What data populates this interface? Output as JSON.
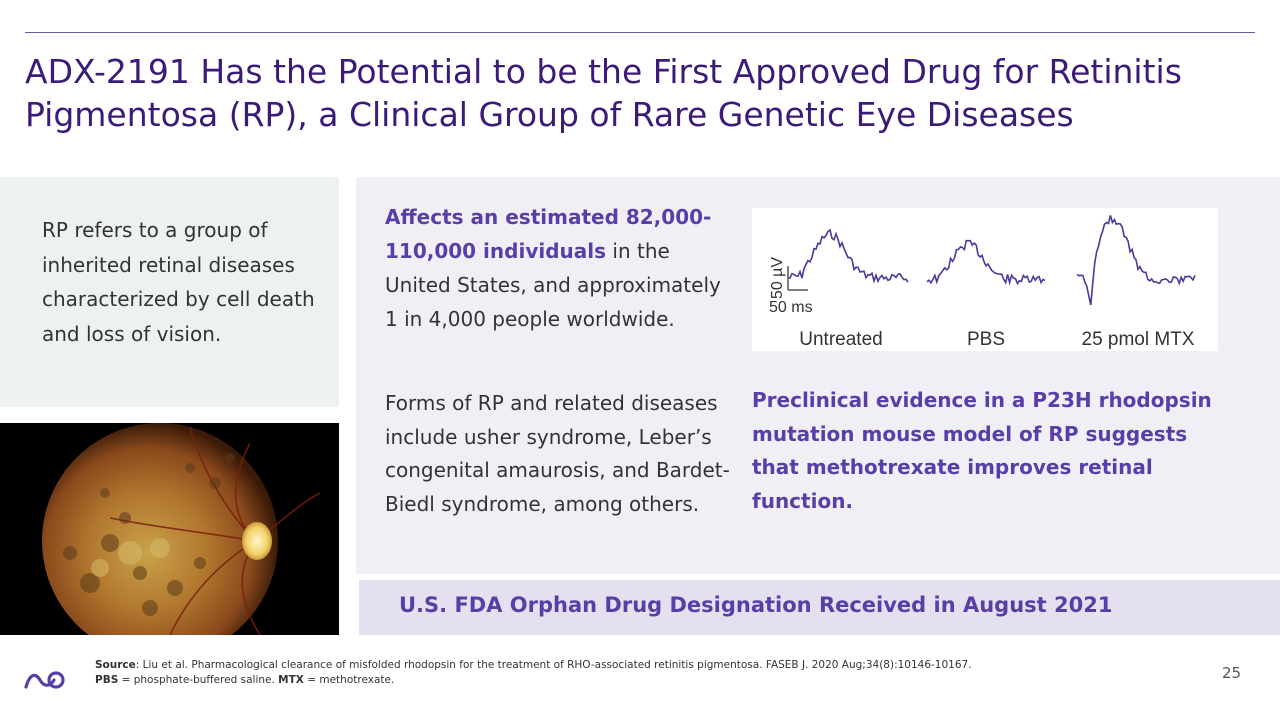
{
  "title": "ADX-2191 Has the Potential to be the First Approved Drug for Retinitis Pigmentosa (RP), a Clinical Group of Rare Genetic Eye Diseases",
  "left_box": {
    "text": "RP refers to a group of inherited retinal diseases characterized by cell death and loss of vision."
  },
  "fundus_image": {
    "alt": "fundus photograph of retina with retinitis pigmentosa"
  },
  "stats": {
    "highlight": "Affects an estimated 82,000-110,000 individuals",
    "rest": " in the United States, and approximately 1 in 4,000 people worldwide."
  },
  "forms": {
    "text": "Forms of RP and related diseases include usher syndrome, Leber’s congenital amaurosis, and Bardet-Biedl syndrome, among others."
  },
  "erg_figure": {
    "scale_y_label": "50 µV",
    "scale_x_label": "50 ms",
    "panel_labels": [
      "Untreated",
      "PBS",
      "25 pmol MTX"
    ],
    "trace_color": "#4a3a9a"
  },
  "preclinical": {
    "text": "Preclinical evidence in a P23H rhodopsin mutation mouse model of RP suggests that methotrexate improves retinal function."
  },
  "banner": {
    "text": "U.S. FDA Orphan Drug Designation Received in August 2021"
  },
  "footnote": {
    "source_label": "Source",
    "source_text": ": Liu et al. Pharmacological clearance of misfolded rhodopsin for the treatment of RHO-associated retinitis pigmentosa. FASEB J. 2020 Aug;34(8):10146-10167.",
    "pbs_label": "PBS",
    "pbs_text": " = phosphate-buffered saline. ",
    "mtx_label": "MTX",
    "mtx_text": " = methotrexate."
  },
  "page_number": "25",
  "colors": {
    "brand_purple": "#3b1a78",
    "accent_purple": "#5a3ea8",
    "panel_bg": "#f1eff6",
    "left_box_bg": "#edf2ef",
    "banner_bg": "#e4e0ef"
  }
}
